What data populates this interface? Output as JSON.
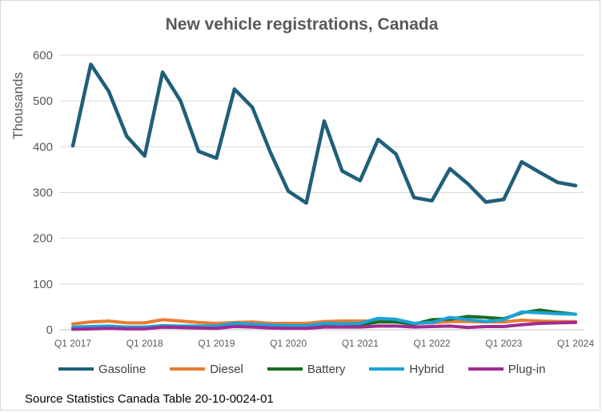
{
  "chart_data": {
    "type": "line",
    "title": "New vehicle registrations, Canada",
    "xlabel": "",
    "ylabel": "Thousands",
    "ylim": [
      0,
      600
    ],
    "yticks": [
      "0",
      "100",
      "200",
      "300",
      "400",
      "500",
      "600"
    ],
    "ytick_values": [
      0,
      100,
      200,
      300,
      400,
      500,
      600
    ],
    "xtick_labels": [
      {
        "index": 0,
        "label": "Q1 2017"
      },
      {
        "index": 4,
        "label": "Q1 2018"
      },
      {
        "index": 8,
        "label": "Q1 2019"
      },
      {
        "index": 12,
        "label": "Q1 2020"
      },
      {
        "index": 16,
        "label": "Q1 2021"
      },
      {
        "index": 20,
        "label": "Q1 2022"
      },
      {
        "index": 24,
        "label": "Q1 2023"
      },
      {
        "index": 28,
        "label": "Q1 2024"
      }
    ],
    "n_points": 29,
    "grid": "horizontal",
    "legend_position": "bottom",
    "series": [
      {
        "name": "Gasoline",
        "color": "#1f5f7a",
        "values": [
          402,
          580,
          521,
          423,
          380,
          563,
          500,
          390,
          375,
          526,
          486,
          388,
          303,
          277,
          456,
          347,
          326,
          416,
          384,
          289,
          282,
          352,
          319,
          279,
          285,
          367,
          344,
          322,
          315
        ]
      },
      {
        "name": "Diesel",
        "color": "#e97c30",
        "values": [
          13,
          17,
          19,
          15,
          15,
          22,
          19,
          16,
          14,
          16,
          17,
          14,
          14,
          14,
          18,
          19,
          19,
          19,
          17,
          14,
          15,
          18,
          18,
          17,
          17,
          21,
          19,
          18,
          18
        ]
      },
      {
        "name": "Battery",
        "color": "#196b24",
        "values": [
          2,
          3,
          4,
          3,
          3,
          6,
          5,
          5,
          4,
          8,
          7,
          6,
          6,
          6,
          9,
          10,
          11,
          17,
          17,
          12,
          22,
          23,
          29,
          27,
          24,
          37,
          43,
          38,
          34
        ]
      },
      {
        "name": "Hybrid",
        "color": "#1aa3d8",
        "values": [
          6,
          7,
          8,
          6,
          6,
          9,
          8,
          8,
          8,
          14,
          12,
          10,
          9,
          9,
          14,
          13,
          14,
          25,
          23,
          14,
          16,
          27,
          22,
          18,
          22,
          39,
          37,
          35,
          34
        ]
      },
      {
        "name": "Plug-in",
        "color": "#a02b93",
        "values": [
          1,
          2,
          3,
          2,
          2,
          6,
          5,
          4,
          3,
          7,
          6,
          4,
          3,
          3,
          6,
          6,
          6,
          8,
          8,
          6,
          7,
          8,
          5,
          7,
          7,
          11,
          14,
          15,
          16
        ]
      }
    ]
  },
  "source_note": "Source Statistics Canada Table 20-10-0024-01"
}
